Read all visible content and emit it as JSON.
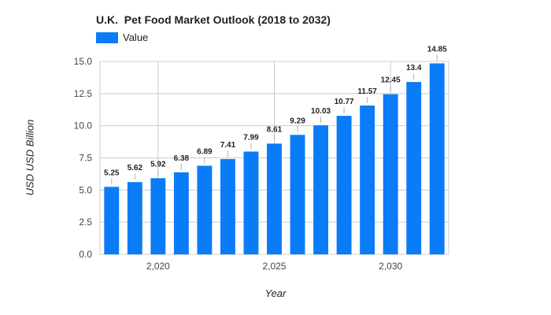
{
  "chart_data": {
    "type": "bar",
    "title": "U.K.  Pet Food Market Outlook (2018 to 2032)",
    "xlabel": "Year",
    "ylabel": "USD USD Billion",
    "legend": {
      "position": "top-left",
      "entries": [
        "Value"
      ]
    },
    "grid": true,
    "color": "#0a7cf7",
    "x": [
      2018,
      2019,
      2020,
      2021,
      2022,
      2023,
      2024,
      2025,
      2026,
      2027,
      2028,
      2029,
      2030,
      2031,
      2032
    ],
    "series": [
      {
        "name": "Value",
        "values": [
          5.25,
          5.62,
          5.92,
          6.38,
          6.89,
          7.41,
          7.99,
          8.61,
          9.29,
          10.03,
          10.77,
          11.57,
          12.45,
          13.4,
          14.85
        ]
      }
    ],
    "data_labels": [
      "5.25",
      "5.62",
      "5.92",
      "6.38",
      "6.89",
      "7.41",
      "7.99",
      "8.61",
      "9.29",
      "10.03",
      "10.77",
      "11.57",
      "12.45",
      "13.4",
      "14.85"
    ],
    "ylim": [
      0,
      15
    ],
    "y_ticks": [
      0,
      2.5,
      5,
      7.5,
      10,
      12.5,
      15
    ],
    "y_tick_labels": [
      "0.0",
      "2.5",
      "5.0",
      "7.5",
      "10.0",
      "12.5",
      "15.0"
    ],
    "x_ticks": [
      2020,
      2025,
      2030
    ],
    "x_tick_labels": [
      "2,020",
      "2,025",
      "2,030"
    ]
  }
}
